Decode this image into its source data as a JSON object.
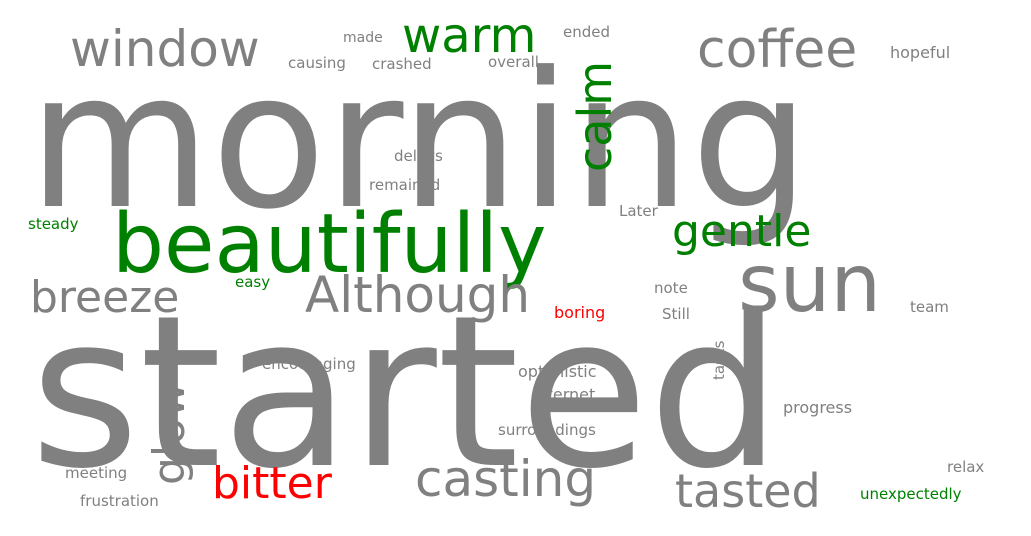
{
  "colors": {
    "neutral": "#808080",
    "positive": "#008000",
    "negative": "#ff0000",
    "background": "#ffffff"
  },
  "words": [
    {
      "text": "morning",
      "sentiment": "neutral"
    },
    {
      "text": "started",
      "sentiment": "neutral"
    },
    {
      "text": "beautifully",
      "sentiment": "positive"
    },
    {
      "text": "sun",
      "sentiment": "neutral"
    },
    {
      "text": "window",
      "sentiment": "neutral"
    },
    {
      "text": "coffee",
      "sentiment": "neutral"
    },
    {
      "text": "warm",
      "sentiment": "positive"
    },
    {
      "text": "calm",
      "sentiment": "positive"
    },
    {
      "text": "gentle",
      "sentiment": "positive"
    },
    {
      "text": "breeze",
      "sentiment": "neutral"
    },
    {
      "text": "Although",
      "sentiment": "neutral"
    },
    {
      "text": "glow",
      "sentiment": "neutral"
    },
    {
      "text": "bitter",
      "sentiment": "negative"
    },
    {
      "text": "casting",
      "sentiment": "neutral"
    },
    {
      "text": "tasted",
      "sentiment": "neutral"
    },
    {
      "text": "made",
      "sentiment": "neutral"
    },
    {
      "text": "ended",
      "sentiment": "neutral"
    },
    {
      "text": "hopeful",
      "sentiment": "neutral"
    },
    {
      "text": "causing",
      "sentiment": "neutral"
    },
    {
      "text": "crashed",
      "sentiment": "neutral"
    },
    {
      "text": "overall",
      "sentiment": "neutral"
    },
    {
      "text": "delays",
      "sentiment": "neutral"
    },
    {
      "text": "remained",
      "sentiment": "neutral"
    },
    {
      "text": "Later",
      "sentiment": "neutral"
    },
    {
      "text": "steady",
      "sentiment": "positive"
    },
    {
      "text": "easy",
      "sentiment": "positive"
    },
    {
      "text": "note",
      "sentiment": "neutral"
    },
    {
      "text": "boring",
      "sentiment": "negative"
    },
    {
      "text": "Still",
      "sentiment": "neutral"
    },
    {
      "text": "team",
      "sentiment": "neutral"
    },
    {
      "text": "tasks",
      "sentiment": "neutral"
    },
    {
      "text": "encouraging",
      "sentiment": "neutral"
    },
    {
      "text": "optimistic",
      "sentiment": "neutral"
    },
    {
      "text": "internet",
      "sentiment": "neutral"
    },
    {
      "text": "progress",
      "sentiment": "neutral"
    },
    {
      "text": "surroundings",
      "sentiment": "neutral"
    },
    {
      "text": "meeting",
      "sentiment": "neutral"
    },
    {
      "text": "frustration",
      "sentiment": "neutral"
    },
    {
      "text": "relax",
      "sentiment": "neutral"
    },
    {
      "text": "unexpectedly",
      "sentiment": "positive"
    }
  ]
}
